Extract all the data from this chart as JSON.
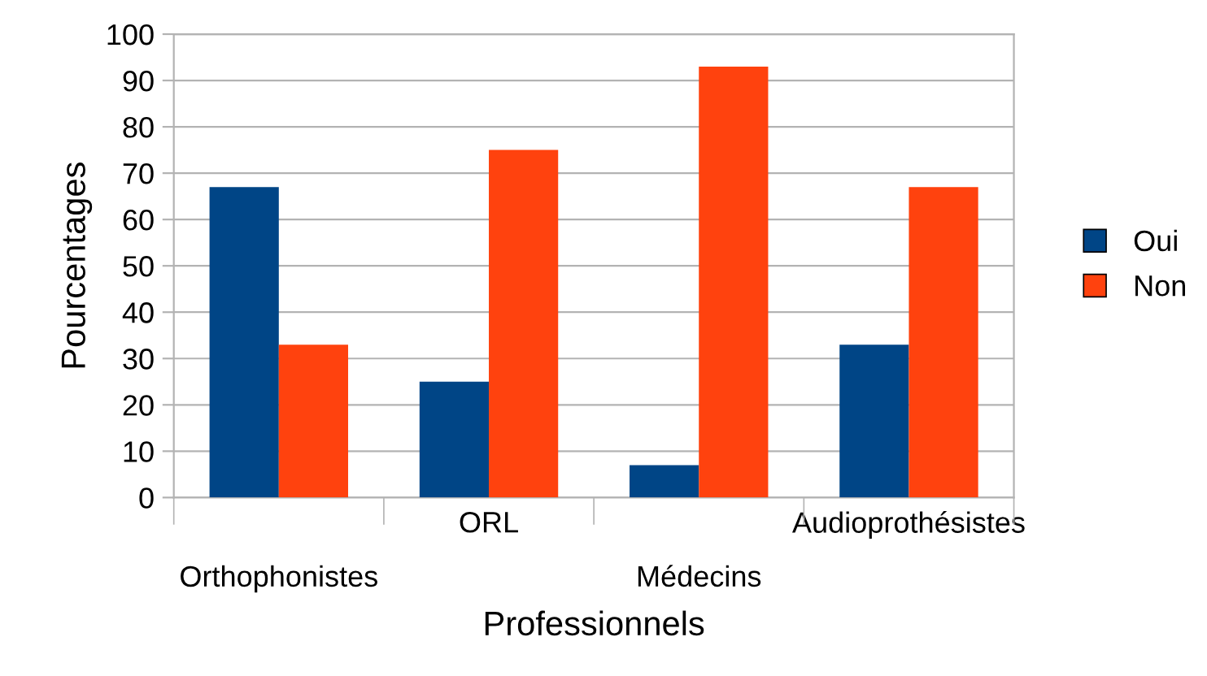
{
  "chart_data": {
    "type": "bar",
    "xlabel": "Professionnels",
    "ylabel": "Pourcentages",
    "categories": [
      "Orthophonistes",
      "ORL",
      "Médecins",
      "Audioprothésistes"
    ],
    "series": [
      {
        "name": "Oui",
        "color": "#004586",
        "values": [
          67,
          25,
          7,
          33
        ]
      },
      {
        "name": "Non",
        "color": "#ff420e",
        "values": [
          33,
          75,
          93,
          67
        ]
      }
    ],
    "ylim": [
      0,
      100
    ],
    "yticks": [
      0,
      10,
      20,
      30,
      40,
      50,
      60,
      70,
      80,
      90,
      100
    ],
    "grid": "y",
    "legend": "right"
  }
}
